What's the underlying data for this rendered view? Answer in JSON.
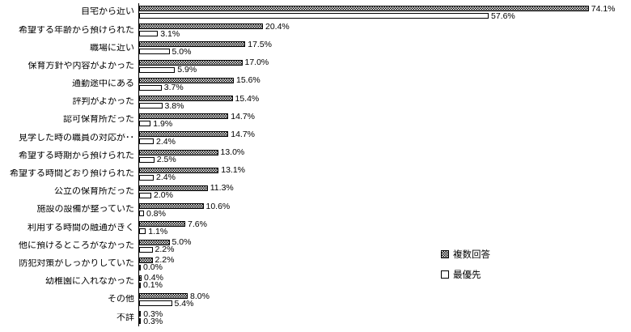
{
  "chart_data": {
    "type": "bar",
    "orientation": "horizontal",
    "title": "",
    "xlabel": "",
    "ylabel": "",
    "xlim": [
      0,
      80
    ],
    "grid": false,
    "legend_position": "right-middle",
    "value_suffix": "%",
    "categories": [
      "自宅から近い",
      "希望する年齢から預けられた",
      "職場に近い",
      "保育方針や内容がよかった",
      "通勤途中にある",
      "評判がよかった",
      "認可保育所だった",
      "見学した時の職員の対応が･･",
      "希望する時期から預けられた",
      "希望する時間どおり預けられた",
      "公立の保育所だった",
      "施設の設備が整っていた",
      "利用する時間の融通がきく",
      "他に預けるところがなかった",
      "防犯対策がしっかりしていた",
      "幼稚園に入れなかった",
      "その他",
      "不詳"
    ],
    "series": [
      {
        "name": "複数回答",
        "style": "checkered",
        "values": [
          74.1,
          20.4,
          17.5,
          17.0,
          15.6,
          15.4,
          14.7,
          14.7,
          13.0,
          13.1,
          11.3,
          10.6,
          7.6,
          5.0,
          2.2,
          0.4,
          8.0,
          0.3
        ]
      },
      {
        "name": "最優先",
        "style": "white",
        "values": [
          57.6,
          3.1,
          5.0,
          5.9,
          3.7,
          3.8,
          1.9,
          2.4,
          2.5,
          2.4,
          2.0,
          0.8,
          1.1,
          2.2,
          0.0,
          0.1,
          5.4,
          0.3
        ]
      }
    ]
  }
}
